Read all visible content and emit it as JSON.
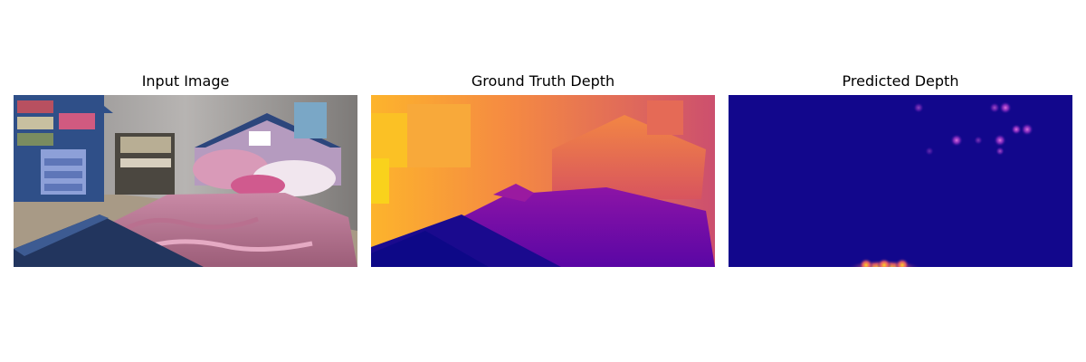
{
  "figure": {
    "panels": [
      {
        "title": "Input Image",
        "content": "photo of a child's bedroom with pink bedding and a house-shaped headboard"
      },
      {
        "title": "Ground Truth Depth",
        "content": "depth map rendered with plasma colormap"
      },
      {
        "title": "Predicted Depth",
        "content": "mostly uniform dark-blue depth map with a few bright spots"
      }
    ]
  },
  "colors": {
    "background": "#ffffff",
    "plasma_low": "#0d0887",
    "plasma_mid": "#a01aa0",
    "plasma_high": "#f9c21c",
    "predicted_bg": "#12078c"
  }
}
